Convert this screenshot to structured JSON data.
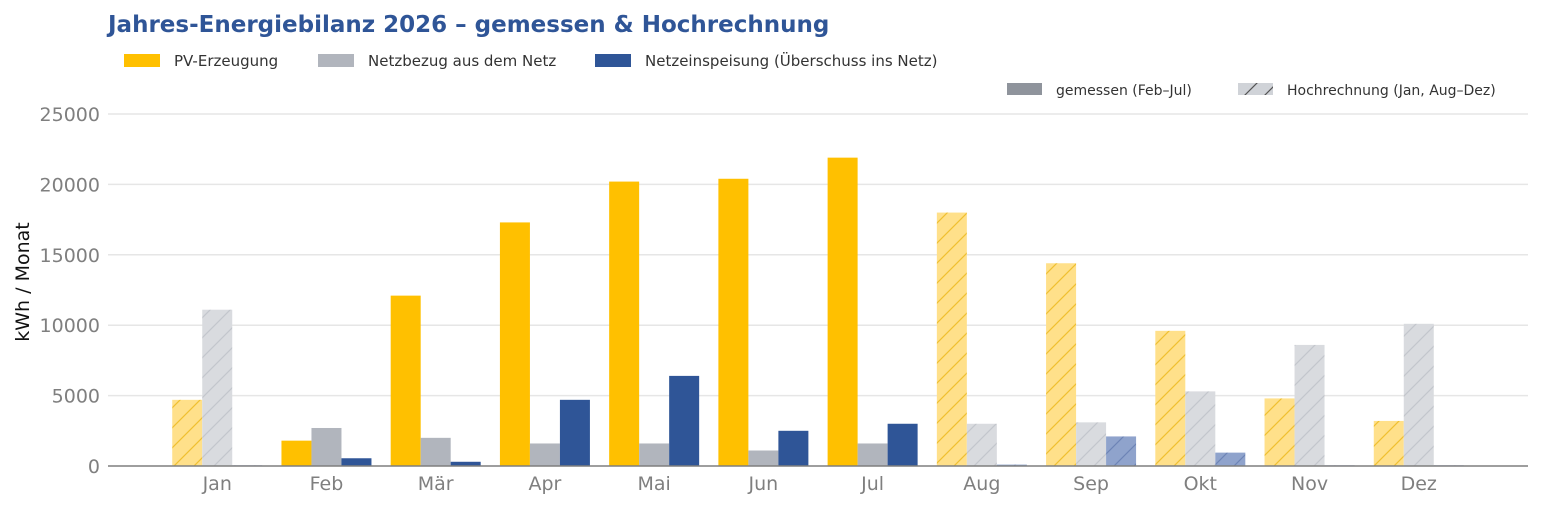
{
  "chart_data": {
    "type": "bar",
    "title": "Jahres-Energiebilanz 2026 – gemessen & Hochrechnung",
    "xlabel": "",
    "ylabel": "kWh / Monat",
    "ylim": [
      0,
      25000
    ],
    "yticks": [
      "0",
      "5000",
      "10000",
      "15000",
      "20000",
      "25000"
    ],
    "categories": [
      "Jan",
      "Feb",
      "Mär",
      "Apr",
      "Mai",
      "Jun",
      "Jul",
      "Aug",
      "Sep",
      "Okt",
      "Nov",
      "Dez"
    ],
    "grid": "horizontal",
    "legend_position": "top-left",
    "series": [
      {
        "name": "PV-Erzeugung",
        "color": "#ffc000",
        "values": [
          4700,
          1800,
          12100,
          17300,
          20200,
          20400,
          21900,
          18000,
          14400,
          9600,
          4800,
          3200
        ]
      },
      {
        "name": "Netzbezug aus dem Netz",
        "color": "#b1b5bd",
        "values": [
          11100,
          2700,
          2000,
          1600,
          1600,
          1100,
          1600,
          3000,
          3100,
          5300,
          8600,
          10100
        ]
      },
      {
        "name": "Netzeinspeisung (Überschuss ins Netz)",
        "color": "#2f5597",
        "values": [
          50,
          550,
          300,
          4700,
          6400,
          2500,
          3000,
          100,
          2100,
          950,
          50,
          50
        ]
      }
    ],
    "projected": [
      true,
      false,
      false,
      false,
      false,
      false,
      false,
      true,
      true,
      true,
      true,
      true
    ],
    "style_legend": [
      {
        "name": "gemessen (Feb–Jul)",
        "style": "solid",
        "color": "#8f949c"
      },
      {
        "name": "Hochrechnung (Jan, Aug–Dez)",
        "style": "hatched",
        "color": "#d0d3d8"
      }
    ]
  }
}
